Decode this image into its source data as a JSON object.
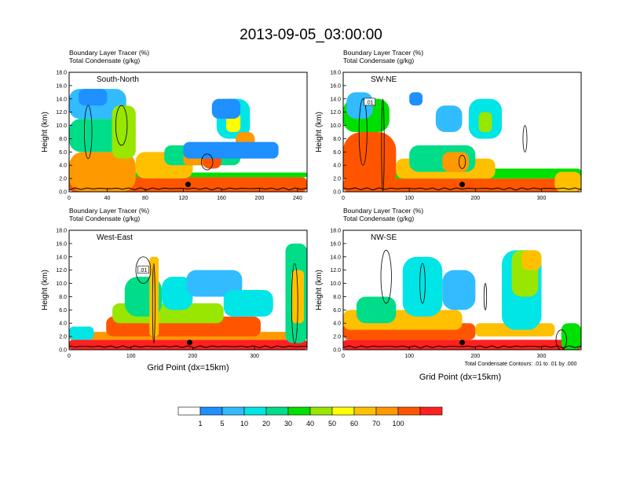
{
  "figure": {
    "title": "2013-09-05_03:00:00",
    "condensate_note": "Total Condensate Contours: .01 to .01 by .000",
    "shared_xlabel": "Grid Point (dx=15km)"
  },
  "legend": {
    "colors": [
      "#ffffff",
      "#1e90ff",
      "#33bbff",
      "#00e5e5",
      "#00dd88",
      "#00e000",
      "#99e600",
      "#ffff00",
      "#ffc000",
      "#ff9900",
      "#ff5500",
      "#ff2020"
    ],
    "labels": [
      "1",
      "5",
      "10",
      "20",
      "30",
      "40",
      "50",
      "60",
      "70",
      "100"
    ]
  },
  "chart_data": [
    {
      "type": "heatmap",
      "title": "South-North",
      "field1": "Boundary Layer Tracer   (%)",
      "field2": "Total Condensate   (g/kg)",
      "xlabel": "",
      "ylabel": "Height (km)",
      "xlim": [
        0,
        250
      ],
      "ylim": [
        0,
        18
      ],
      "xticks": [
        0,
        40,
        80,
        120,
        160,
        200,
        240
      ],
      "yticks": [
        "0.0",
        "2.0",
        "4.0",
        "6.0",
        "8.0",
        "10.0",
        "12.0",
        "14.0",
        "16.0",
        "18.0"
      ],
      "marker_x": 125,
      "contour_label": "",
      "cells": [
        {
          "x": 0,
          "y": 0,
          "w": 250,
          "h": 2.2,
          "level": 10
        },
        {
          "x": 0,
          "y": 2.2,
          "w": 250,
          "h": 0.7,
          "level": 5
        },
        {
          "x": 0,
          "y": 0,
          "w": 70,
          "h": 6,
          "level": 9
        },
        {
          "x": 0,
          "y": 6,
          "w": 65,
          "h": 5,
          "level": 4
        },
        {
          "x": 0,
          "y": 11,
          "w": 60,
          "h": 4.5,
          "level": 2
        },
        {
          "x": 10,
          "y": 13,
          "w": 30,
          "h": 2.5,
          "level": 1
        },
        {
          "x": 45,
          "y": 5,
          "w": 25,
          "h": 8,
          "level": 6
        },
        {
          "x": 70,
          "y": 2,
          "w": 60,
          "h": 4,
          "level": 8
        },
        {
          "x": 100,
          "y": 4,
          "w": 80,
          "h": 3,
          "level": 4
        },
        {
          "x": 120,
          "y": 4,
          "w": 30,
          "h": 2,
          "level": 9
        },
        {
          "x": 140,
          "y": 3.5,
          "w": 20,
          "h": 3,
          "level": 10
        },
        {
          "x": 155,
          "y": 8,
          "w": 35,
          "h": 6,
          "level": 3
        },
        {
          "x": 165,
          "y": 9,
          "w": 15,
          "h": 3,
          "level": 7
        },
        {
          "x": 175,
          "y": 6,
          "w": 20,
          "h": 3,
          "level": 9
        },
        {
          "x": 120,
          "y": 5,
          "w": 100,
          "h": 2.5,
          "level": 1
        },
        {
          "x": 150,
          "y": 11,
          "w": 30,
          "h": 3,
          "level": 1
        }
      ],
      "contours": [
        {
          "cx": 20,
          "cy": 9,
          "rx": 4,
          "ry": 4
        },
        {
          "cx": 55,
          "cy": 10,
          "rx": 6,
          "ry": 3
        },
        {
          "cx": 145,
          "cy": 4.5,
          "rx": 6,
          "ry": 1.2
        }
      ]
    },
    {
      "type": "heatmap",
      "title": "SW-NE",
      "field1": "Boundary Layer Tracer   (%)",
      "field2": "Total Condensate   (g/kg)",
      "xlabel": "",
      "ylabel": "Height (km)",
      "xlim": [
        0,
        360
      ],
      "ylim": [
        0,
        18
      ],
      "xticks": [
        0,
        100,
        200,
        300
      ],
      "yticks": [
        "0.0",
        "2.0",
        "4.0",
        "6.0",
        "8.0",
        "10.0",
        "12.0",
        "14.0",
        "16.0",
        "18.0"
      ],
      "marker_x": 180,
      "contour_label": ".01",
      "cells": [
        {
          "x": 0,
          "y": 0,
          "w": 360,
          "h": 2,
          "level": 10
        },
        {
          "x": 0,
          "y": 2,
          "w": 360,
          "h": 1.5,
          "level": 5
        },
        {
          "x": 0,
          "y": 0,
          "w": 80,
          "h": 9,
          "level": 10
        },
        {
          "x": 0,
          "y": 9,
          "w": 70,
          "h": 5,
          "level": 5
        },
        {
          "x": 5,
          "y": 11,
          "w": 40,
          "h": 4,
          "level": 2
        },
        {
          "x": 80,
          "y": 2,
          "w": 150,
          "h": 3,
          "level": 8
        },
        {
          "x": 100,
          "y": 3,
          "w": 100,
          "h": 4,
          "level": 4
        },
        {
          "x": 150,
          "y": 3,
          "w": 40,
          "h": 3,
          "level": 9
        },
        {
          "x": 190,
          "y": 8,
          "w": 50,
          "h": 6,
          "level": 3
        },
        {
          "x": 205,
          "y": 9,
          "w": 20,
          "h": 3,
          "level": 6
        },
        {
          "x": 140,
          "y": 9,
          "w": 40,
          "h": 4,
          "level": 2
        },
        {
          "x": 320,
          "y": 0,
          "w": 40,
          "h": 3,
          "level": 8
        },
        {
          "x": 100,
          "y": 13,
          "w": 20,
          "h": 2,
          "level": 1
        }
      ],
      "contours": [
        {
          "cx": 30,
          "cy": 9,
          "rx": 6,
          "ry": 5
        },
        {
          "cx": 60,
          "cy": 7,
          "rx": 2,
          "ry": 7
        },
        {
          "cx": 275,
          "cy": 8,
          "rx": 3,
          "ry": 2
        },
        {
          "cx": 180,
          "cy": 4.5,
          "rx": 5,
          "ry": 1
        }
      ]
    },
    {
      "type": "heatmap",
      "title": "West-East",
      "field1": "Boundary Layer Tracer   (%)",
      "field2": "Total Condensate   (g/kg)",
      "xlabel": "Grid Point (dx=15km)",
      "ylabel": "Height (km)",
      "xlim": [
        0,
        385
      ],
      "ylim": [
        0,
        18
      ],
      "xticks": [
        0,
        100,
        200,
        300
      ],
      "yticks": [
        "0.0",
        "2.0",
        "4.0",
        "6.0",
        "8.0",
        "10.0",
        "12.0",
        "14.0",
        "16.0",
        "18.0"
      ],
      "marker_x": 195,
      "contour_label": ".01",
      "cells": [
        {
          "x": 0,
          "y": 0,
          "w": 385,
          "h": 1.5,
          "level": 11
        },
        {
          "x": 0,
          "y": 1.5,
          "w": 385,
          "h": 1.2,
          "level": 9
        },
        {
          "x": 0,
          "y": 1.5,
          "w": 40,
          "h": 2,
          "level": 3
        },
        {
          "x": 60,
          "y": 2,
          "w": 250,
          "h": 3,
          "level": 10
        },
        {
          "x": 70,
          "y": 4,
          "w": 180,
          "h": 3,
          "level": 6
        },
        {
          "x": 90,
          "y": 5,
          "w": 60,
          "h": 6,
          "level": 4
        },
        {
          "x": 130,
          "y": 2,
          "w": 15,
          "h": 12,
          "level": 8
        },
        {
          "x": 150,
          "y": 6,
          "w": 50,
          "h": 5,
          "level": 3
        },
        {
          "x": 190,
          "y": 8,
          "w": 90,
          "h": 4,
          "level": 2
        },
        {
          "x": 250,
          "y": 5,
          "w": 80,
          "h": 4,
          "level": 3
        },
        {
          "x": 350,
          "y": 1,
          "w": 35,
          "h": 15,
          "level": 4
        },
        {
          "x": 360,
          "y": 4,
          "w": 20,
          "h": 8,
          "level": 8
        }
      ],
      "contours": [
        {
          "cx": 120,
          "cy": 12,
          "rx": 12,
          "ry": 2
        },
        {
          "cx": 137,
          "cy": 7,
          "rx": 2,
          "ry": 6
        },
        {
          "cx": 365,
          "cy": 7,
          "rx": 5,
          "ry": 6
        }
      ]
    },
    {
      "type": "heatmap",
      "title": "NW-SE",
      "field1": "Boundary Layer Tracer   (%)",
      "field2": "Total Condensate   (g/kg)",
      "xlabel": "Grid Point (dx=15km)",
      "ylabel": "Height (km)",
      "xlim": [
        0,
        360
      ],
      "ylim": [
        0,
        18
      ],
      "xticks": [
        0,
        100,
        200,
        300
      ],
      "yticks": [
        "0.0",
        "2.0",
        "4.0",
        "6.0",
        "8.0",
        "10.0",
        "12.0",
        "14.0",
        "16.0",
        "18.0"
      ],
      "marker_x": 180,
      "contour_label": "",
      "cells": [
        {
          "x": 0,
          "y": 0,
          "w": 360,
          "h": 1.5,
          "level": 11
        },
        {
          "x": 0,
          "y": 1.5,
          "w": 200,
          "h": 2.5,
          "level": 10
        },
        {
          "x": 0,
          "y": 3,
          "w": 180,
          "h": 3,
          "level": 8
        },
        {
          "x": 20,
          "y": 4,
          "w": 60,
          "h": 4,
          "level": 4
        },
        {
          "x": 90,
          "y": 5,
          "w": 60,
          "h": 9,
          "level": 3
        },
        {
          "x": 150,
          "y": 6,
          "w": 50,
          "h": 6,
          "level": 2
        },
        {
          "x": 200,
          "y": 2,
          "w": 120,
          "h": 2,
          "level": 8
        },
        {
          "x": 240,
          "y": 3,
          "w": 60,
          "h": 12,
          "level": 3
        },
        {
          "x": 255,
          "y": 8,
          "w": 40,
          "h": 7,
          "level": 6
        },
        {
          "x": 270,
          "y": 12,
          "w": 30,
          "h": 3,
          "level": 8
        },
        {
          "x": 330,
          "y": 0,
          "w": 30,
          "h": 4,
          "level": 5
        }
      ],
      "contours": [
        {
          "cx": 65,
          "cy": 11,
          "rx": 8,
          "ry": 4
        },
        {
          "cx": 120,
          "cy": 10,
          "rx": 4,
          "ry": 3
        },
        {
          "cx": 215,
          "cy": 8,
          "rx": 2,
          "ry": 2
        },
        {
          "cx": 330,
          "cy": 1.5,
          "rx": 8,
          "ry": 1.5
        }
      ]
    }
  ]
}
